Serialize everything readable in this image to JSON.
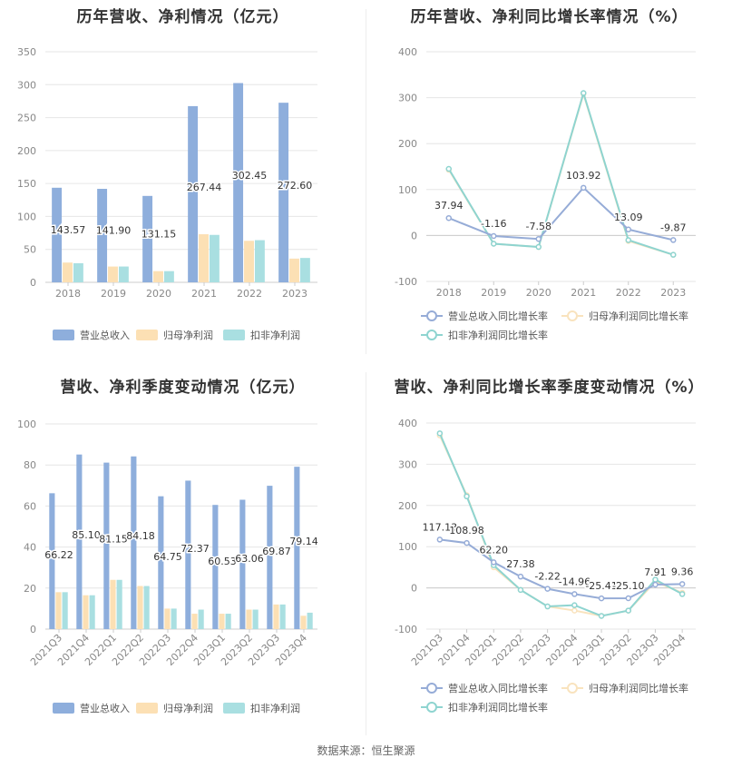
{
  "footer": "数据来源：恒生聚源",
  "colors": {
    "revenue": "#8EAEDC",
    "parent_profit": "#FCE0B4",
    "non_recurring_profit": "#A9DFE1",
    "revenue_line": "#96ACD7",
    "parent_line": "#F9E3BE",
    "nonrec_line": "#8ED4D0",
    "grid": "#E6E6E6",
    "axis_text": "#888888",
    "label_text": "#333333"
  },
  "chart_data": [
    {
      "title": "历年营收、净利情况（亿元）",
      "type": "bar",
      "categories": [
        "2018",
        "2019",
        "2020",
        "2021",
        "2022",
        "2023"
      ],
      "ylim": [
        0,
        350
      ],
      "yticks": [
        0,
        50,
        100,
        150,
        200,
        250,
        300,
        350
      ],
      "legend_position": "bottom",
      "series": [
        {
          "name": "营业总收入",
          "values": [
            143.57,
            141.9,
            131.15,
            267.44,
            302.45,
            272.6
          ],
          "labels": [
            "143.57",
            "141.90",
            "131.15",
            "267.44",
            "302.45",
            "272.60"
          ]
        },
        {
          "name": "归母净利润",
          "values": [
            30,
            24,
            17,
            73,
            63,
            36
          ]
        },
        {
          "name": "扣非净利润",
          "values": [
            29,
            24,
            17,
            72,
            64,
            37
          ]
        }
      ]
    },
    {
      "title": "历年营收、净利同比增长率情况（%）",
      "type": "line",
      "categories": [
        "2018",
        "2019",
        "2020",
        "2021",
        "2022",
        "2023"
      ],
      "ylim": [
        -100,
        400
      ],
      "yticks": [
        -100,
        0,
        100,
        200,
        300,
        400
      ],
      "legend_position": "bottom",
      "series": [
        {
          "name": "营业总收入同比增长率",
          "values": [
            37.94,
            -1.16,
            -7.58,
            103.92,
            13.09,
            -9.87
          ],
          "labels": [
            "37.94",
            "-1.16",
            "-7.58",
            "103.92",
            "13.09",
            "-9.87"
          ]
        },
        {
          "name": "归母净利润同比增长率",
          "values": [
            143,
            -18,
            -25,
            308,
            -12,
            -42
          ]
        },
        {
          "name": "扣非净利润同比增长率",
          "values": [
            145,
            -18,
            -25,
            310,
            -10,
            -42
          ]
        }
      ]
    },
    {
      "title": "营收、净利季度变动情况（亿元）",
      "type": "bar",
      "categories": [
        "2021Q3",
        "2021Q4",
        "2022Q1",
        "2022Q2",
        "2022Q3",
        "2022Q4",
        "2023Q1",
        "2023Q2",
        "2023Q3",
        "2023Q4"
      ],
      "ylim": [
        0,
        100
      ],
      "yticks": [
        0,
        20,
        40,
        60,
        80,
        100
      ],
      "legend_position": "bottom",
      "series": [
        {
          "name": "营业总收入",
          "values": [
            66.22,
            85.1,
            81.15,
            84.18,
            64.75,
            72.37,
            60.53,
            63.06,
            69.87,
            79.14
          ],
          "labels": [
            "66.22",
            "85.10",
            "81.15",
            "84.18",
            "64.75",
            "72.37",
            "60.53",
            "63.06",
            "69.87",
            "79.14"
          ]
        },
        {
          "name": "归母净利润",
          "values": [
            18,
            16.5,
            24,
            21,
            10,
            7.5,
            7.5,
            9.5,
            12,
            6.5
          ]
        },
        {
          "name": "扣非净利润",
          "values": [
            18,
            16.5,
            24,
            21,
            10,
            9.5,
            7.5,
            9.5,
            12,
            8
          ]
        }
      ]
    },
    {
      "title": "营收、净利同比增长率季度变动情况（%）",
      "type": "line",
      "categories": [
        "2021Q3",
        "2021Q4",
        "2022Q1",
        "2022Q2",
        "2022Q3",
        "2022Q4",
        "2023Q1",
        "2023Q2",
        "2023Q3",
        "2023Q4"
      ],
      "ylim": [
        -100,
        400
      ],
      "yticks": [
        -100,
        0,
        100,
        200,
        300,
        400
      ],
      "legend_position": "bottom",
      "series": [
        {
          "name": "营业总收入同比增长率",
          "values": [
            117.13,
            108.98,
            62.2,
            27.38,
            -2.22,
            -14.96,
            -25.41,
            -25.1,
            7.91,
            9.36
          ],
          "labels": [
            "117.13",
            "108.98",
            "62.20",
            "27.38",
            "-2.22",
            "-14.96",
            "-25.41",
            "-25.10",
            "7.91",
            "9.36"
          ]
        },
        {
          "name": "归母净利润同比增长率",
          "values": [
            370,
            225,
            50,
            -5,
            -45,
            -55,
            -68,
            -55,
            15,
            -12
          ]
        },
        {
          "name": "扣非净利润同比增长率",
          "values": [
            375,
            222,
            55,
            -5,
            -45,
            -42,
            -68,
            -55,
            20,
            -15
          ]
        }
      ]
    }
  ]
}
